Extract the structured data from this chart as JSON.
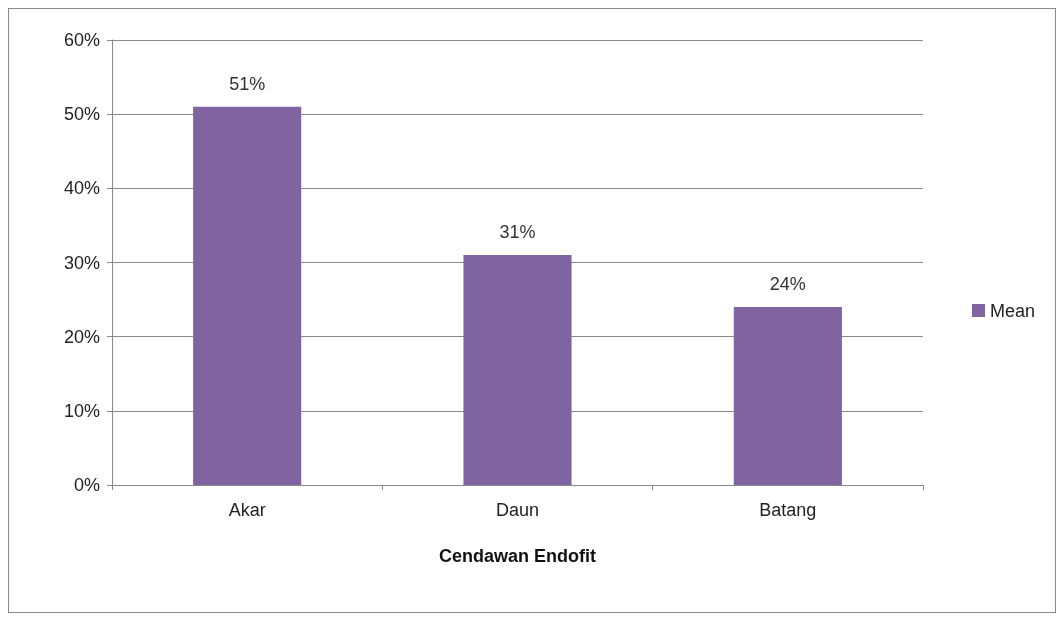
{
  "chart_data": {
    "type": "bar",
    "xlabel": "Cendawan Endofit",
    "categories": [
      "Akar",
      "Daun",
      "Batang"
    ],
    "series": [
      {
        "name": "Mean",
        "color": "#8064a2",
        "values": [
          51,
          31,
          24
        ],
        "value_labels": [
          "51%",
          "31%",
          "24%"
        ]
      }
    ],
    "ylim": [
      0,
      60
    ],
    "yticks": [
      {
        "value": 0,
        "label": "0%"
      },
      {
        "value": 10,
        "label": "10%"
      },
      {
        "value": 20,
        "label": "20%"
      },
      {
        "value": 30,
        "label": "30%"
      },
      {
        "value": 40,
        "label": "40%"
      },
      {
        "value": 50,
        "label": "50%"
      },
      {
        "value": 60,
        "label": "60%"
      }
    ],
    "grid": "y",
    "legend": "right"
  }
}
